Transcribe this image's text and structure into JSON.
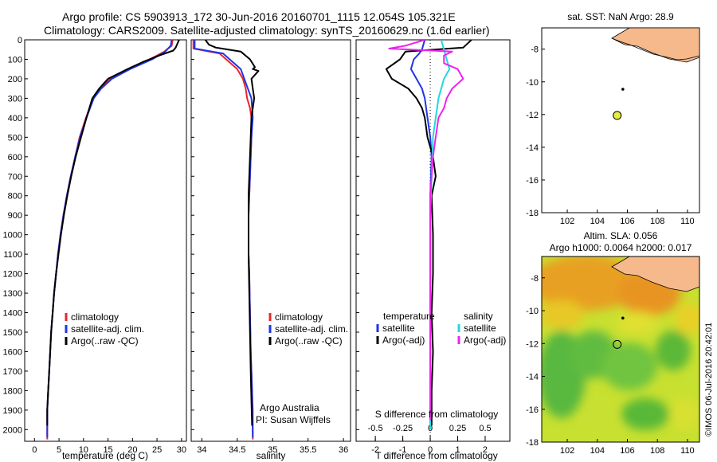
{
  "header": {
    "line1": "Argo profile: CS 5903913_172 30-Jun-2016 20160701_1115 12.054S 105.321E",
    "line2": "Climatology: CARS2009. Satellite-adjusted climatology: synTS_20160629.nc (1.6d earlier)"
  },
  "colors": {
    "climatology": "#e8262a",
    "satellite": "#1f35e6",
    "argo": "#000000",
    "sat_salinity": "#22d8de",
    "argo_salinity_adj": "#ee22ee",
    "land": "#f5b98c"
  },
  "credit": "©IMOS 06-Jul-2016 20:42:01",
  "chart_data": [
    {
      "type": "line",
      "xlabel": "temperature (deg C)",
      "ylabel": "",
      "xlim": [
        -2,
        31
      ],
      "ylim": [
        2060,
        0
      ],
      "xticks": [
        "0",
        "5",
        "10",
        "15",
        "20",
        "25",
        "30"
      ],
      "yticks": [
        "0",
        "100",
        "200",
        "300",
        "400",
        "500",
        "600",
        "700",
        "800",
        "900",
        "1000",
        "1100",
        "1200",
        "1300",
        "1400",
        "1500",
        "1600",
        "1700",
        "1800",
        "1900",
        "2000"
      ],
      "legend": [
        "climatology",
        "satellite-adj. clim.",
        "Argo(..raw -QC)"
      ],
      "series": [
        {
          "name": "climatology",
          "color": "#e8262a",
          "x": [
            28.2,
            28,
            26.5,
            23.5,
            19,
            15.5,
            13.5,
            12,
            10.5,
            9.2,
            8.3,
            7.4,
            6.6,
            5.9,
            5.3,
            4.8,
            4.4,
            4,
            3.7,
            3.4,
            3.2,
            3,
            2.8,
            2.6,
            2.6
          ],
          "y": [
            0,
            30,
            60,
            100,
            150,
            200,
            250,
            300,
            400,
            500,
            600,
            700,
            800,
            900,
            1000,
            1100,
            1200,
            1300,
            1400,
            1500,
            1600,
            1700,
            1800,
            1900,
            2050
          ]
        },
        {
          "name": "satellite-adj. clim.",
          "color": "#1f35e6",
          "x": [
            28,
            27.8,
            26.7,
            24,
            19.5,
            15.8,
            13.6,
            12.1,
            10.6,
            9.3,
            8.3,
            7.4,
            6.6,
            5.9,
            5.3,
            4.8,
            4.4,
            4,
            3.7,
            3.4,
            3.2,
            3,
            2.8,
            2.6,
            2.6
          ],
          "y": [
            0,
            30,
            60,
            100,
            150,
            200,
            250,
            300,
            400,
            500,
            600,
            700,
            800,
            900,
            1000,
            1100,
            1200,
            1300,
            1400,
            1500,
            1600,
            1700,
            1800,
            1900,
            2040
          ]
        },
        {
          "name": "Argo(..raw -QC)",
          "color": "#000000",
          "x": [
            29.5,
            28.8,
            28.3,
            25.5,
            22,
            19,
            15,
            13.2,
            11.8,
            10.6,
            9.5,
            8.4,
            7.5,
            6.7,
            6,
            5.4,
            4.9,
            4.4,
            4,
            3.7,
            3.4,
            3.2,
            3,
            2.8,
            2.6,
            2.6
          ],
          "y": [
            0,
            40,
            55,
            80,
            115,
            150,
            200,
            250,
            300,
            400,
            500,
            600,
            700,
            800,
            900,
            1000,
            1100,
            1200,
            1300,
            1400,
            1500,
            1600,
            1700,
            1800,
            1900,
            1980
          ]
        }
      ]
    },
    {
      "type": "line",
      "xlabel": "salinity",
      "xlim": [
        33.85,
        36.1
      ],
      "ylim": [
        2060,
        0
      ],
      "xticks": [
        "34",
        "34.5",
        "35",
        "35.5",
        "36"
      ],
      "legend": [
        "climatology",
        "satellite-adj. clim.",
        "Argo(..raw -QC)"
      ],
      "annotation": [
        "Argo Australia",
        "PI: Susan Wijffels"
      ],
      "series": [
        {
          "name": "climatology",
          "color": "#e8262a",
          "x": [
            33.88,
            33.88,
            34.25,
            34.5,
            34.58,
            34.62,
            34.64,
            34.68,
            34.7,
            34.7,
            34.69,
            34.68,
            34.67,
            34.66,
            34.66,
            34.66,
            34.67,
            34.68,
            34.69,
            34.7,
            34.71,
            34.72,
            34.72
          ],
          "y": [
            0,
            45,
            70,
            150,
            200,
            250,
            300,
            350,
            400,
            500,
            600,
            700,
            800,
            900,
            1000,
            1100,
            1200,
            1400,
            1600,
            1700,
            1800,
            1900,
            2050
          ]
        },
        {
          "name": "satellite-adj. clim.",
          "color": "#1f35e6",
          "x": [
            33.9,
            33.9,
            34.3,
            34.55,
            34.65,
            34.7,
            34.72,
            34.7,
            34.69,
            34.68,
            34.67,
            34.66,
            34.66,
            34.66,
            34.67,
            34.68,
            34.69,
            34.7,
            34.71,
            34.72
          ],
          "y": [
            0,
            45,
            70,
            150,
            250,
            300,
            400,
            500,
            600,
            700,
            800,
            900,
            1000,
            1100,
            1200,
            1400,
            1600,
            1700,
            1800,
            2040
          ]
        },
        {
          "name": "Argo(..raw -QC)",
          "color": "#000000",
          "x": [
            34.05,
            34.1,
            34.2,
            34.55,
            34.68,
            34.75,
            34.72,
            34.8,
            34.7,
            34.72,
            34.74,
            34.72,
            34.7,
            34.69,
            34.68,
            34.67,
            34.66,
            34.66,
            34.66,
            34.67,
            34.68,
            34.69,
            34.7,
            34.71
          ],
          "y": [
            0,
            25,
            40,
            60,
            100,
            140,
            150,
            160,
            200,
            250,
            300,
            350,
            400,
            500,
            600,
            700,
            800,
            900,
            1100,
            1300,
            1500,
            1700,
            1850,
            1980
          ]
        }
      ]
    },
    {
      "type": "line",
      "xlabel": "T difference from climatology",
      "xlabel_top": "S difference from climatology",
      "xlim": [
        -2.7,
        2.9
      ],
      "ylim": [
        2060,
        0
      ],
      "xticks": [
        "-2",
        "-1",
        "0",
        "1",
        "2"
      ],
      "xticks_top": [
        "-0.5",
        "-0.25",
        "0",
        "0.25",
        "0.5"
      ],
      "legend_left_title": "temperature",
      "legend_right_title": "salinity",
      "legend": [
        "satellite",
        "Argo(-adj)",
        "satellite",
        "Argo(-adj)"
      ],
      "series": [
        {
          "name": "satellite",
          "color": "#1f35e6",
          "x": [
            -0.2,
            -0.3,
            -0.4,
            -0.6,
            -0.7,
            -0.5,
            -0.3,
            -0.2,
            -0.1,
            0,
            0.05,
            0,
            0,
            0,
            0,
            0,
            0
          ],
          "y": [
            0,
            50,
            70,
            100,
            150,
            200,
            250,
            300,
            400,
            500,
            600,
            800,
            1000,
            1200,
            1500,
            1800,
            2000
          ]
        },
        {
          "name": "Argo(-adj)",
          "color": "#000000",
          "x": [
            1.5,
            1.2,
            -0.9,
            -1.1,
            -1.6,
            -1.4,
            -0.8,
            -0.5,
            -0.3,
            -0.2,
            -0.1,
            0.1,
            0.2,
            0.05,
            0.1,
            0.1,
            0.05,
            0.1,
            0.05,
            0.05
          ],
          "y": [
            0,
            40,
            60,
            100,
            150,
            200,
            250,
            300,
            350,
            400,
            500,
            600,
            700,
            800,
            1000,
            1200,
            1400,
            1600,
            1800,
            1980
          ]
        },
        {
          "name": "satellite",
          "color": "#22d8de",
          "x": [
            0.4,
            0.5,
            0.6,
            0.7,
            0.5,
            0.4,
            0.3,
            0.2,
            0.1,
            0.05,
            0,
            0,
            0,
            0,
            0
          ],
          "y": [
            0,
            50,
            100,
            150,
            200,
            250,
            300,
            400,
            500,
            700,
            900,
            1200,
            1500,
            1800,
            2000
          ]
        },
        {
          "name": "Argo(-adj)",
          "color": "#ee22ee",
          "x": [
            -0.2,
            -0.9,
            -1.5,
            0.8,
            0.5,
            0.5,
            1.0,
            1.2,
            0.8,
            0.6,
            0.5,
            0.3,
            0.2,
            0.1,
            0.05,
            0,
            0,
            0,
            0,
            0
          ],
          "y": [
            0,
            30,
            45,
            60,
            80,
            120,
            150,
            200,
            250,
            300,
            350,
            400,
            500,
            600,
            700,
            800,
            1000,
            1300,
            1600,
            1950
          ]
        }
      ]
    },
    {
      "type": "scatter",
      "title": "sat. SST: NaN Argo: 28.9",
      "xlim": [
        100.3,
        110.8
      ],
      "ylim": [
        -18,
        -6.7
      ],
      "xticks": [
        "102",
        "104",
        "106",
        "108",
        "110"
      ],
      "yticks": [
        "-8",
        "-10",
        "-12",
        "-14",
        "-16",
        "-18"
      ],
      "points": [
        {
          "x": 105.321,
          "y": -12.054
        }
      ]
    },
    {
      "type": "heatmap",
      "title": "Altim. SLA: 0.056",
      "subtitle": "Argo h1000: 0.0064 h2000: 0.017",
      "xlim": [
        100.3,
        110.8
      ],
      "ylim": [
        -18,
        -6.7
      ],
      "xticks": [
        "102",
        "104",
        "106",
        "108",
        "110"
      ],
      "yticks": [
        "-8",
        "-10",
        "-12",
        "-14",
        "-16",
        "-18"
      ],
      "points": [
        {
          "x": 105.321,
          "y": -12.054
        }
      ]
    }
  ]
}
